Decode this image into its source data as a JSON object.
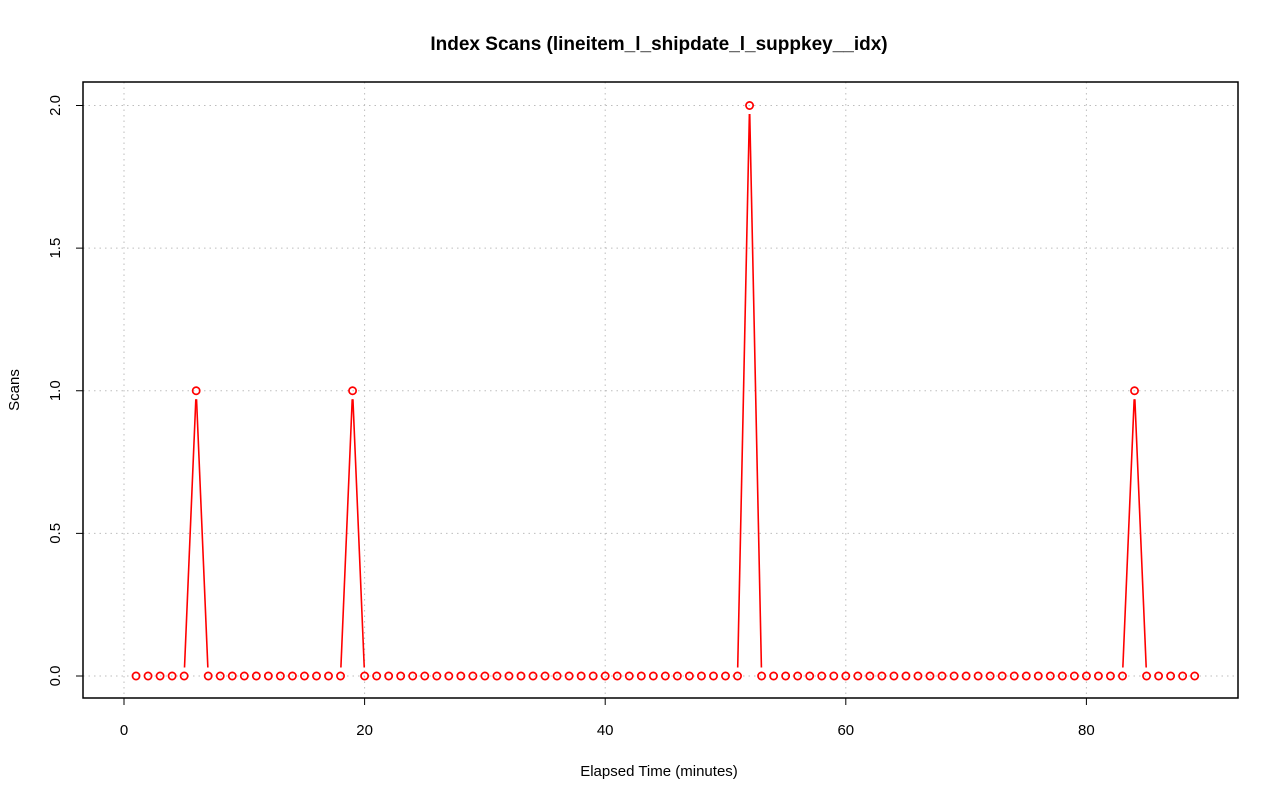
{
  "chart_data": {
    "type": "line",
    "title": "Index Scans (lineitem_l_shipdate_l_suppkey__idx)",
    "xlabel": "Elapsed Time (minutes)",
    "ylabel": "Scans",
    "xlim": [
      0,
      92
    ],
    "ylim": [
      0,
      2
    ],
    "xticks": [
      "0",
      "20",
      "40",
      "60",
      "80"
    ],
    "yticks": [
      "0.0",
      "0.5",
      "1.0",
      "1.5",
      "2.0"
    ],
    "grid": true,
    "series": [
      {
        "color": "#ff0000",
        "style": "line-with-open-circles",
        "x": [
          1,
          2,
          3,
          4,
          5,
          6,
          7,
          8,
          9,
          10,
          11,
          12,
          13,
          14,
          15,
          16,
          17,
          18,
          19,
          20,
          21,
          22,
          23,
          24,
          25,
          26,
          27,
          28,
          29,
          30,
          31,
          32,
          33,
          34,
          35,
          36,
          37,
          38,
          39,
          40,
          41,
          42,
          43,
          44,
          45,
          46,
          47,
          48,
          49,
          50,
          51,
          52,
          53,
          54,
          55,
          56,
          57,
          58,
          59,
          60,
          61,
          62,
          63,
          64,
          65,
          66,
          67,
          68,
          69,
          70,
          71,
          72,
          73,
          74,
          75,
          76,
          77,
          78,
          79,
          80,
          81,
          82,
          83,
          84,
          85,
          86,
          87,
          88,
          89
        ],
        "values": [
          0,
          0,
          0,
          0,
          0,
          1,
          0,
          0,
          0,
          0,
          0,
          0,
          0,
          0,
          0,
          0,
          0,
          0,
          1,
          0,
          0,
          0,
          0,
          0,
          0,
          0,
          0,
          0,
          0,
          0,
          0,
          0,
          0,
          0,
          0,
          0,
          0,
          0,
          0,
          0,
          0,
          0,
          0,
          0,
          0,
          0,
          0,
          0,
          0,
          0,
          0,
          2,
          0,
          0,
          0,
          0,
          0,
          0,
          0,
          0,
          0,
          0,
          0,
          0,
          0,
          0,
          0,
          0,
          0,
          0,
          0,
          0,
          0,
          0,
          0,
          0,
          0,
          0,
          0,
          0,
          0,
          0,
          0,
          1,
          0,
          0,
          0,
          0,
          0
        ]
      }
    ]
  }
}
